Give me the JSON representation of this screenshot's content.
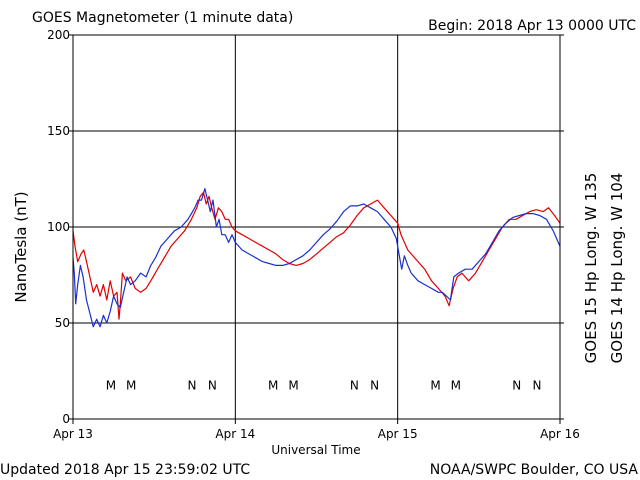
{
  "header": {
    "title": "GOES Magnetometer (1 minute data)",
    "begin": "Begin:  2018 Apr 13 0000 UTC"
  },
  "footer": {
    "updated": "Updated 2018 Apr 15 23:59:02 UTC",
    "source": "NOAA/SWPC Boulder, CO USA"
  },
  "colors": {
    "goes15": "#e00000",
    "goes14": "#1a2fd0",
    "axis": "#000000",
    "background": "#ffffff"
  },
  "chart_data": {
    "type": "line",
    "title": "GOES Magnetometer (1 minute data)",
    "xlabel": "Universal Time",
    "ylabel": "NanoTesla (nT)",
    "xlim": [
      0,
      72
    ],
    "x_units": "hours since 2018 Apr 13 0000 UTC",
    "ylim": [
      0,
      200
    ],
    "yticks": [
      0,
      50,
      100,
      150,
      200
    ],
    "xtick_positions": [
      0,
      24,
      48,
      72
    ],
    "xtick_labels": [
      "Apr 13",
      "Apr 14",
      "Apr 15",
      "Apr 16"
    ],
    "grid": true,
    "legend": "right (vertical)",
    "series": [
      {
        "name": "GOES 15 Hp  Long. W 135",
        "color": "#e00000",
        "points": [
          [
            0,
            98
          ],
          [
            0.3,
            90
          ],
          [
            0.7,
            82
          ],
          [
            1.2,
            86
          ],
          [
            1.6,
            88
          ],
          [
            2,
            82
          ],
          [
            2.5,
            74
          ],
          [
            3,
            66
          ],
          [
            3.5,
            70
          ],
          [
            4,
            64
          ],
          [
            4.5,
            70
          ],
          [
            5,
            62
          ],
          [
            5.5,
            72
          ],
          [
            6,
            64
          ],
          [
            6.5,
            66
          ],
          [
            6.8,
            52
          ],
          [
            7,
            60
          ],
          [
            7.3,
            76
          ],
          [
            7.8,
            72
          ],
          [
            8.5,
            74
          ],
          [
            9.2,
            68
          ],
          [
            10,
            66
          ],
          [
            10.8,
            68
          ],
          [
            11.5,
            72
          ],
          [
            12.5,
            78
          ],
          [
            13.5,
            84
          ],
          [
            14.5,
            90
          ],
          [
            15.5,
            94
          ],
          [
            16.5,
            98
          ],
          [
            17.5,
            104
          ],
          [
            18.3,
            110
          ],
          [
            18.8,
            116
          ],
          [
            19.3,
            118
          ],
          [
            19.7,
            112
          ],
          [
            20.1,
            116
          ],
          [
            20.5,
            110
          ],
          [
            21.0,
            104
          ],
          [
            21.5,
            110
          ],
          [
            22.0,
            108
          ],
          [
            22.5,
            104
          ],
          [
            23.0,
            104
          ],
          [
            23.5,
            100
          ],
          [
            24,
            98
          ],
          [
            25,
            96
          ],
          [
            26,
            94
          ],
          [
            27,
            92
          ],
          [
            28,
            90
          ],
          [
            29,
            88
          ],
          [
            30,
            86
          ],
          [
            31,
            83
          ],
          [
            32,
            81
          ],
          [
            33,
            80
          ],
          [
            34,
            81
          ],
          [
            35,
            83
          ],
          [
            36,
            86
          ],
          [
            37,
            89
          ],
          [
            38,
            92
          ],
          [
            39,
            95
          ],
          [
            40,
            97
          ],
          [
            41,
            101
          ],
          [
            42,
            106
          ],
          [
            43,
            110
          ],
          [
            44,
            112
          ],
          [
            45,
            114
          ],
          [
            45.5,
            112
          ],
          [
            46,
            110
          ],
          [
            47,
            106
          ],
          [
            48,
            102
          ],
          [
            48.5,
            96
          ],
          [
            49,
            92
          ],
          [
            49.5,
            88
          ],
          [
            50,
            86
          ],
          [
            51,
            82
          ],
          [
            52,
            78
          ],
          [
            53,
            72
          ],
          [
            54,
            68
          ],
          [
            55,
            64
          ],
          [
            55.6,
            59
          ],
          [
            56.2,
            68
          ],
          [
            56.8,
            74
          ],
          [
            57.5,
            76
          ],
          [
            58.5,
            72
          ],
          [
            59.5,
            76
          ],
          [
            60.5,
            82
          ],
          [
            61.5,
            88
          ],
          [
            62.5,
            94
          ],
          [
            63.5,
            100
          ],
          [
            64.5,
            104
          ],
          [
            65.5,
            104
          ],
          [
            66.5,
            106
          ],
          [
            67.5,
            108
          ],
          [
            68.5,
            109
          ],
          [
            69.5,
            108
          ],
          [
            70.3,
            110
          ],
          [
            71.2,
            106
          ],
          [
            72,
            102
          ]
        ]
      },
      {
        "name": "GOES 14 Hp  Long. W 104",
        "color": "#1a2fd0",
        "points": [
          [
            0,
            84
          ],
          [
            0.2,
            75
          ],
          [
            0.4,
            60
          ],
          [
            0.7,
            70
          ],
          [
            1.1,
            80
          ],
          [
            1.5,
            74
          ],
          [
            2,
            62
          ],
          [
            2.5,
            55
          ],
          [
            3,
            48
          ],
          [
            3.5,
            52
          ],
          [
            4,
            48
          ],
          [
            4.5,
            54
          ],
          [
            5,
            50
          ],
          [
            5.5,
            56
          ],
          [
            6,
            64
          ],
          [
            6.5,
            60
          ],
          [
            7,
            58
          ],
          [
            7.5,
            66
          ],
          [
            8,
            74
          ],
          [
            8.5,
            70
          ],
          [
            9.2,
            72
          ],
          [
            10,
            76
          ],
          [
            10.8,
            74
          ],
          [
            11.5,
            80
          ],
          [
            12.2,
            84
          ],
          [
            13,
            90
          ],
          [
            14,
            94
          ],
          [
            15,
            98
          ],
          [
            16,
            100
          ],
          [
            17,
            104
          ],
          [
            18,
            110
          ],
          [
            18.5,
            114
          ],
          [
            19,
            114
          ],
          [
            19.5,
            120
          ],
          [
            19.9,
            114
          ],
          [
            20.3,
            108
          ],
          [
            20.7,
            114
          ],
          [
            21.2,
            100
          ],
          [
            21.6,
            104
          ],
          [
            22,
            96
          ],
          [
            22.5,
            96
          ],
          [
            23,
            92
          ],
          [
            23.5,
            96
          ],
          [
            24,
            92
          ],
          [
            25,
            88
          ],
          [
            26,
            86
          ],
          [
            27,
            84
          ],
          [
            28,
            82
          ],
          [
            29,
            81
          ],
          [
            30,
            80
          ],
          [
            31,
            80
          ],
          [
            32,
            81
          ],
          [
            33,
            83
          ],
          [
            34,
            85
          ],
          [
            35,
            88
          ],
          [
            36,
            92
          ],
          [
            37,
            96
          ],
          [
            38,
            99
          ],
          [
            39,
            103
          ],
          [
            40,
            108
          ],
          [
            41,
            111
          ],
          [
            42,
            111
          ],
          [
            43,
            112
          ],
          [
            44,
            110
          ],
          [
            45,
            108
          ],
          [
            46,
            104
          ],
          [
            47,
            100
          ],
          [
            47.8,
            94
          ],
          [
            48.2,
            86
          ],
          [
            48.6,
            78
          ],
          [
            49,
            85
          ],
          [
            49.5,
            80
          ],
          [
            50,
            76
          ],
          [
            51,
            72
          ],
          [
            52,
            70
          ],
          [
            53,
            68
          ],
          [
            54,
            66
          ],
          [
            54.6,
            66
          ],
          [
            55.2,
            64
          ],
          [
            55.8,
            62
          ],
          [
            56.3,
            74
          ],
          [
            57,
            76
          ],
          [
            58,
            78
          ],
          [
            59,
            78
          ],
          [
            60,
            82
          ],
          [
            61,
            86
          ],
          [
            62,
            92
          ],
          [
            63,
            98
          ],
          [
            64,
            102
          ],
          [
            65,
            105
          ],
          [
            66,
            106
          ],
          [
            67,
            107
          ],
          [
            68,
            107
          ],
          [
            69,
            106
          ],
          [
            70,
            104
          ],
          [
            71,
            98
          ],
          [
            72,
            90
          ]
        ]
      }
    ],
    "series_labels": {
      "goes15": "GOES 15 Hp  Long. W 135",
      "goes14": "GOES 14 Hp  Long. W 104"
    },
    "annotations": [
      {
        "text": "M",
        "x": 5.6,
        "series": "goes14"
      },
      {
        "text": "M",
        "x": 8.6,
        "series": "goes15"
      },
      {
        "text": "N",
        "x": 17.6,
        "series": "goes14"
      },
      {
        "text": "N",
        "x": 20.6,
        "series": "goes15"
      },
      {
        "text": "M",
        "x": 29.6,
        "series": "goes14"
      },
      {
        "text": "M",
        "x": 32.6,
        "series": "goes15"
      },
      {
        "text": "N",
        "x": 41.6,
        "series": "goes14"
      },
      {
        "text": "N",
        "x": 44.6,
        "series": "goes15"
      },
      {
        "text": "M",
        "x": 53.6,
        "series": "goes14"
      },
      {
        "text": "M",
        "x": 56.6,
        "series": "goes15"
      },
      {
        "text": "N",
        "x": 65.6,
        "series": "goes14"
      },
      {
        "text": "N",
        "x": 68.6,
        "series": "goes15"
      }
    ],
    "annotation_y": 18
  }
}
